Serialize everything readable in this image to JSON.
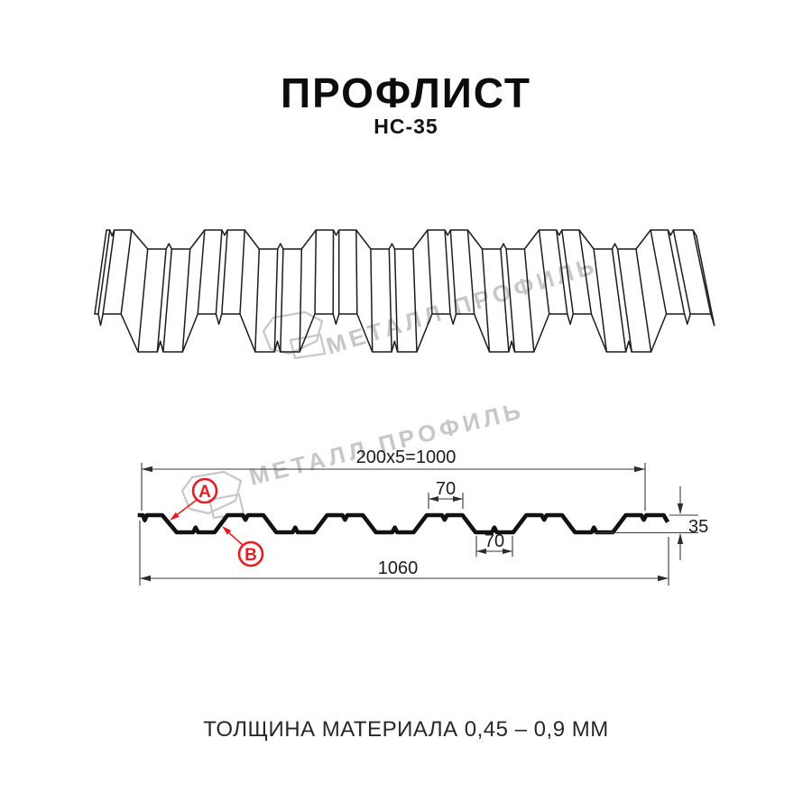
{
  "page": {
    "title": "ПРОФЛИСТ",
    "subtitle": "НС-35",
    "footer": "ТОЛЩИНА МАТЕРИАЛА 0,45 – 0,9 ММ"
  },
  "watermark": {
    "text": "МЕТАЛЛ ПРОФИЛЬ",
    "logo": "metal-profil-logo"
  },
  "dimensions": {
    "coverage": "200x5=1000",
    "crest_width": "70",
    "valley_width": "70",
    "profile_height": "35",
    "overall_width": "1060"
  },
  "callouts": {
    "a": "A",
    "b": "B"
  },
  "colors": {
    "ink": "#1c1c1c",
    "section": "#111111",
    "dim": "#3a3a3a",
    "red": "#e31e24",
    "watermark": "#c7c7c7",
    "text": "#272727"
  }
}
